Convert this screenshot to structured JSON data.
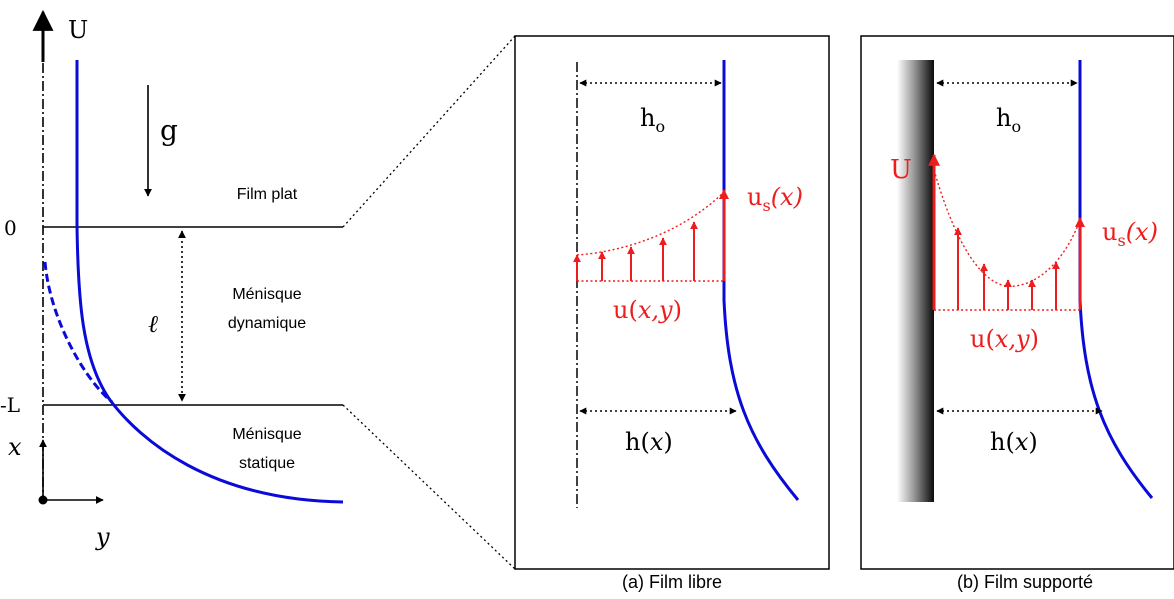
{
  "left": {
    "axis_top_label": "U",
    "gravity_label": "g",
    "zero_label": "0",
    "minus_L_label": "-L",
    "x_axis_label": "x",
    "y_axis_label": "y",
    "ell_label": "ℓ",
    "film_plat_label": "Film plat",
    "menisque_dyn_line1": "Ménisque",
    "menisque_dyn_line2": "dynamique",
    "menisque_stat_line1": "Ménisque",
    "menisque_stat_line2": "statique"
  },
  "panel_a": {
    "h0_base": "h",
    "h0_sub": "o",
    "us_base": "u",
    "us_sub": "s",
    "us_arg": "(x)",
    "u_base": "u(",
    "u_args": "x,y",
    "u_close": ")",
    "hx_base": "h(",
    "hx_arg": "x",
    "hx_close": ")",
    "caption": "(a) Film libre"
  },
  "panel_b": {
    "U_label": "U",
    "h0_base": "h",
    "h0_sub": "o",
    "us_base": "u",
    "us_sub": "s",
    "us_arg": "(x)",
    "u_base": "u(",
    "u_args": "x,y",
    "u_close": ")",
    "hx_base": "h(",
    "hx_arg": "x",
    "hx_close": ")",
    "caption": "(b) Film supporté"
  },
  "colors": {
    "film": "#0b0bd8",
    "velocity": "#ee1c1c",
    "line": "#000000"
  }
}
